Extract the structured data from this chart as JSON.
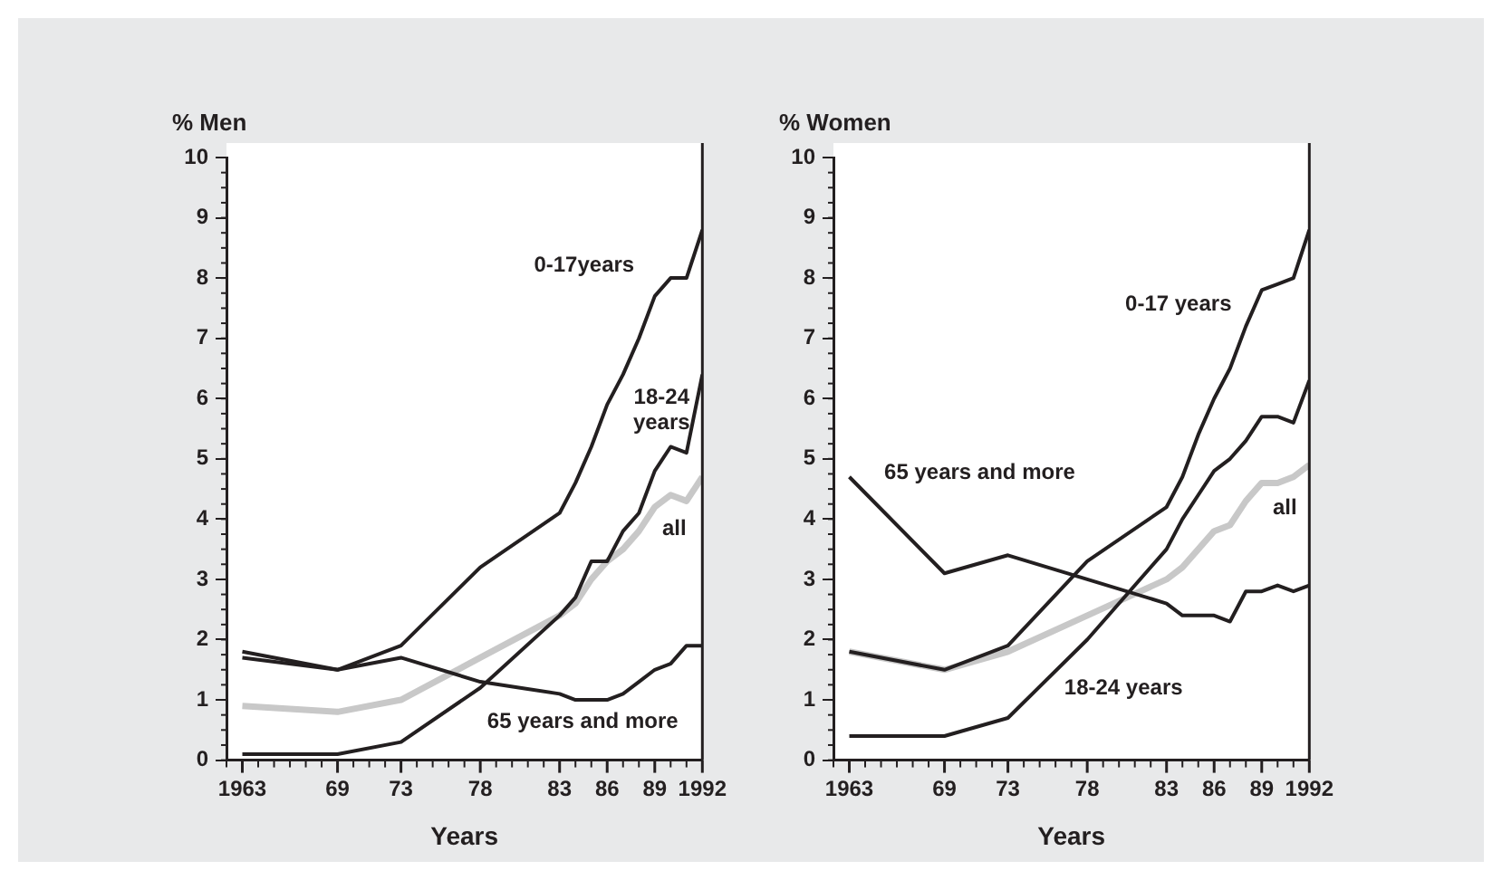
{
  "chart_data": [
    {
      "type": "line",
      "ylabel": "% Men",
      "xlabel": "Years",
      "xlim": [
        1962,
        1992
      ],
      "ylim": [
        0,
        10
      ],
      "xticks": [
        {
          "value": 1963,
          "label": "1963"
        },
        {
          "value": 1969,
          "label": "69"
        },
        {
          "value": 1973,
          "label": "73"
        },
        {
          "value": 1978,
          "label": "78"
        },
        {
          "value": 1983,
          "label": "83"
        },
        {
          "value": 1986,
          "label": "86"
        },
        {
          "value": 1989,
          "label": "89"
        },
        {
          "value": 1992,
          "label": "1992"
        }
      ],
      "yticks": [
        0,
        1,
        2,
        3,
        4,
        5,
        6,
        7,
        8,
        9,
        10
      ],
      "grid": false,
      "legend": false,
      "marker": "none",
      "line_style": "solid",
      "x": [
        1963,
        1969,
        1973,
        1978,
        1983,
        1984,
        1985,
        1986,
        1987,
        1988,
        1989,
        1990,
        1991,
        1992
      ],
      "series": [
        {
          "name": "all",
          "color": "#c8c8c8",
          "values": [
            0.9,
            0.8,
            1.0,
            1.7,
            2.4,
            2.6,
            3.0,
            3.3,
            3.5,
            3.8,
            4.2,
            4.4,
            4.3,
            4.7
          ]
        },
        {
          "name": "0-17years",
          "color": "#231f20",
          "values": [
            1.7,
            1.5,
            1.9,
            3.2,
            4.1,
            4.6,
            5.2,
            5.9,
            6.4,
            7.0,
            7.7,
            8.0,
            8.0,
            8.8
          ]
        },
        {
          "name": "18-24 years",
          "color": "#231f20",
          "values": [
            0.1,
            0.1,
            0.3,
            1.2,
            2.4,
            2.7,
            3.3,
            3.3,
            3.8,
            4.1,
            4.8,
            5.2,
            5.1,
            6.4
          ]
        },
        {
          "name": "65 years and more",
          "color": "#231f20",
          "values": [
            1.8,
            1.5,
            1.7,
            1.3,
            1.1,
            1.0,
            1.0,
            1.0,
            1.1,
            1.3,
            1.5,
            1.6,
            1.9,
            1.9
          ]
        }
      ]
    },
    {
      "type": "line",
      "ylabel": "% Women",
      "xlabel": "Years",
      "xlim": [
        1962,
        1992
      ],
      "ylim": [
        0,
        10
      ],
      "xticks": [
        {
          "value": 1963,
          "label": "1963"
        },
        {
          "value": 1969,
          "label": "69"
        },
        {
          "value": 1973,
          "label": "73"
        },
        {
          "value": 1978,
          "label": "78"
        },
        {
          "value": 1983,
          "label": "83"
        },
        {
          "value": 1986,
          "label": "86"
        },
        {
          "value": 1989,
          "label": "89"
        },
        {
          "value": 1992,
          "label": "1992"
        }
      ],
      "yticks": [
        0,
        1,
        2,
        3,
        4,
        5,
        6,
        7,
        8,
        9,
        10
      ],
      "grid": false,
      "legend": false,
      "marker": "none",
      "line_style": "solid",
      "x": [
        1963,
        1969,
        1973,
        1978,
        1983,
        1984,
        1985,
        1986,
        1987,
        1988,
        1989,
        1990,
        1991,
        1992
      ],
      "series": [
        {
          "name": "all",
          "color": "#c8c8c8",
          "values": [
            1.8,
            1.5,
            1.8,
            2.4,
            3.0,
            3.2,
            3.5,
            3.8,
            3.9,
            4.3,
            4.6,
            4.6,
            4.7,
            4.9
          ]
        },
        {
          "name": "0-17 years",
          "color": "#231f20",
          "values": [
            1.8,
            1.5,
            1.9,
            3.3,
            4.2,
            4.7,
            5.4,
            6.0,
            6.5,
            7.2,
            7.8,
            7.9,
            8.0,
            8.8
          ]
        },
        {
          "name": "18-24 years",
          "color": "#231f20",
          "values": [
            0.4,
            0.4,
            0.7,
            2.0,
            3.5,
            4.0,
            4.4,
            4.8,
            5.0,
            5.3,
            5.7,
            5.7,
            5.6,
            6.3
          ]
        },
        {
          "name": "65 years and more",
          "color": "#231f20",
          "values": [
            4.7,
            3.1,
            3.4,
            3.0,
            2.6,
            2.4,
            2.4,
            2.4,
            2.3,
            2.8,
            2.8,
            2.9,
            2.8,
            2.9
          ]
        }
      ]
    }
  ]
}
